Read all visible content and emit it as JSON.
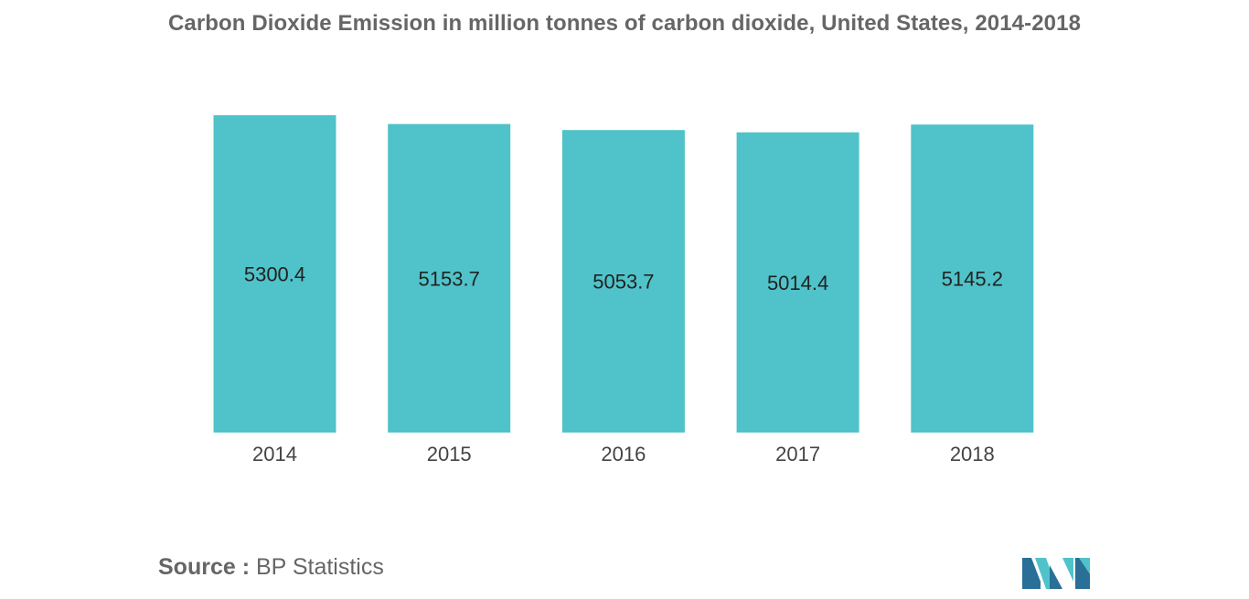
{
  "header": {
    "title": "Carbon Dioxide Emission in million tonnes of carbon dioxide, United States, 2014-2018"
  },
  "chart_data": {
    "type": "bar",
    "title": "Carbon Dioxide Emission in million tonnes of carbon dioxide, United States, 2014-2018",
    "categories": [
      "2014",
      "2015",
      "2016",
      "2017",
      "2018"
    ],
    "values": [
      5300.4,
      5153.7,
      5053.7,
      5014.4,
      5145.2
    ],
    "value_labels": [
      "5300.4",
      "5153.7",
      "5053.7",
      "5014.4",
      "5145.2"
    ],
    "xlabel": "",
    "ylabel": "",
    "ylim": [
      0,
      5300.4
    ],
    "grid": false,
    "legend": "none",
    "bar_color": "#4fc3c9"
  },
  "footer": {
    "source_key": "Source :",
    "source_value": "BP Statistics"
  },
  "colors": {
    "title": "#666666",
    "bar": "#4fc3c9",
    "logo_dark": "#2a6f97",
    "logo_light": "#4fc3c9"
  },
  "logo_icon": "mordor-intelligence-logo-icon"
}
